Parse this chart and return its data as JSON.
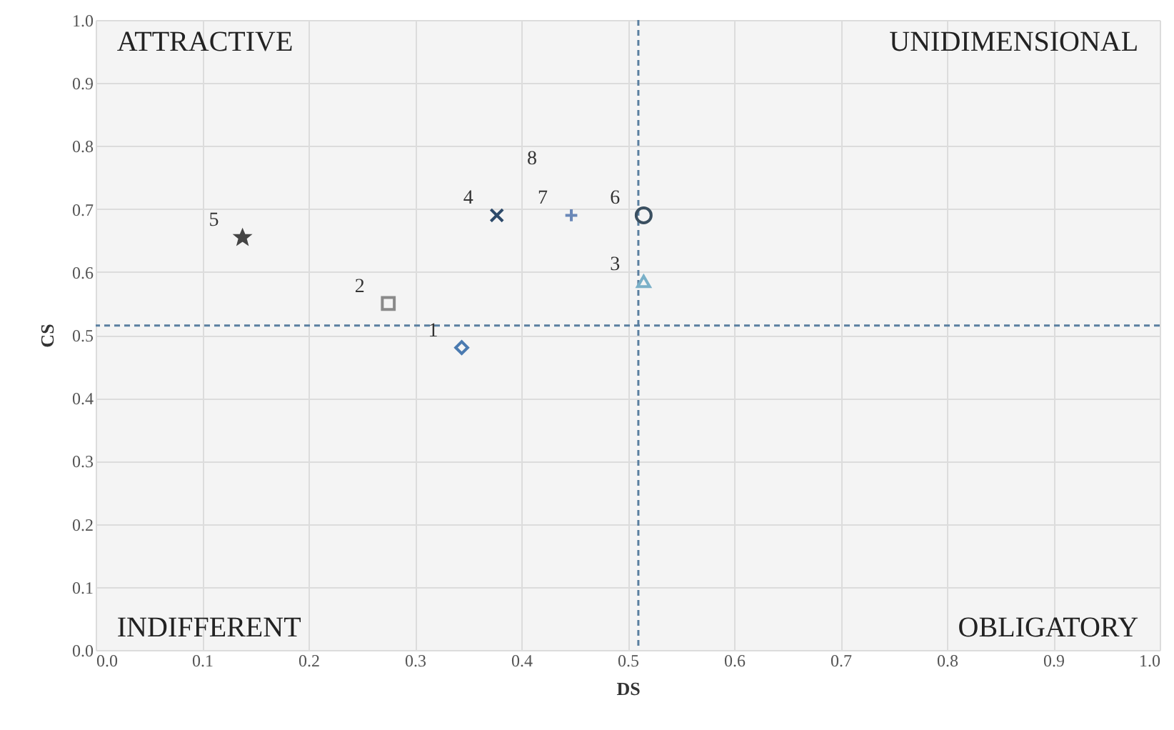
{
  "chart_data": {
    "type": "scatter",
    "xlabel": "DS",
    "ylabel": "CS",
    "xlim": [
      0,
      1
    ],
    "ylim": [
      0,
      1
    ],
    "xticks": [
      {
        "value": 0,
        "label": "0.0"
      },
      {
        "value": 0.1,
        "label": "0.1"
      },
      {
        "value": 0.2,
        "label": "0.2"
      },
      {
        "value": 0.3,
        "label": "0.3"
      },
      {
        "value": 0.4,
        "label": "0.4"
      },
      {
        "value": 0.5,
        "label": "0.5"
      },
      {
        "value": 0.6,
        "label": "0.6"
      },
      {
        "value": 0.7,
        "label": "0.7"
      },
      {
        "value": 0.8,
        "label": "0.8"
      },
      {
        "value": 0.9,
        "label": "0.9"
      },
      {
        "value": 1,
        "label": "1.0"
      }
    ],
    "yticks": [
      {
        "value": 0,
        "label": "0.0"
      },
      {
        "value": 0.1,
        "label": "0.1"
      },
      {
        "value": 0.2,
        "label": "0.2"
      },
      {
        "value": 0.3,
        "label": "0.3"
      },
      {
        "value": 0.4,
        "label": "0.4"
      },
      {
        "value": 0.5,
        "label": "0.5"
      },
      {
        "value": 0.6,
        "label": "0.6"
      },
      {
        "value": 0.7,
        "label": "0.7"
      },
      {
        "value": 0.8,
        "label": "0.8"
      },
      {
        "value": 0.9,
        "label": "0.9"
      },
      {
        "value": 1,
        "label": "1.0"
      }
    ],
    "grid": true,
    "series": [
      {
        "name": "1",
        "color": "#4a7ab0",
        "x": [
          0.344
        ],
        "values": [
          0.48
        ],
        "marker": "diamond"
      },
      {
        "name": "2",
        "color": "#8a8a8a",
        "x": [
          0.275
        ],
        "values": [
          0.55
        ],
        "marker": "square"
      },
      {
        "name": "3",
        "color": "#7ab0c8",
        "x": [
          0.515
        ],
        "values": [
          0.585
        ],
        "marker": "triangle"
      },
      {
        "name": "4",
        "color": "#2d4a6a",
        "x": [
          0.377
        ],
        "values": [
          0.69
        ],
        "marker": "x"
      },
      {
        "name": "5",
        "color": "#444444",
        "x": [
          0.138
        ],
        "values": [
          0.655
        ],
        "marker": "star"
      },
      {
        "name": "6",
        "color": "#3a4f60",
        "x": [
          0.515
        ],
        "values": [
          0.69
        ],
        "marker": "circle"
      },
      {
        "name": "7",
        "color": "#6a88b8",
        "x": [
          0.447
        ],
        "values": [
          0.69
        ],
        "marker": "cross"
      }
    ],
    "annotations": [
      "ATTRACTIVE",
      "UNIDIMENSIONAL",
      "INDIFFERENT",
      "OBLIGATORY",
      "8"
    ],
    "ref_lines": [
      {
        "axis": "x",
        "value": 0.51,
        "color": "#5a7fa0",
        "line_style": "dashed"
      },
      {
        "axis": "y",
        "value": 0.515,
        "color": "#5a7fa0",
        "line_style": "dashed"
      }
    ]
  }
}
